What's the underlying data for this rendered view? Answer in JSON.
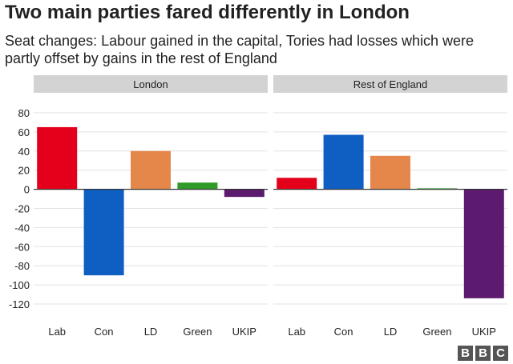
{
  "title": "Two main parties fared differently in London",
  "subtitle": "Seat changes: Labour gained in the capital, Tories had losses which were partly offset by gains in the rest of England",
  "logo": [
    "B",
    "B",
    "C"
  ],
  "chart_data": {
    "type": "bar",
    "ylim": [
      -120,
      80
    ],
    "yticks": [
      80,
      60,
      40,
      20,
      0,
      -20,
      -40,
      -60,
      -80,
      -100,
      -120
    ],
    "grid": true,
    "categories": [
      "Lab",
      "Con",
      "LD",
      "Green",
      "UKIP"
    ],
    "colors": [
      "#e4001a",
      "#0f5fc2",
      "#e5874a",
      "#2f9a28",
      "#5c1b6e"
    ],
    "panels": [
      {
        "name": "London",
        "values": [
          65,
          -90,
          40,
          7,
          -8
        ]
      },
      {
        "name": "Rest of England",
        "values": [
          12,
          57,
          35,
          1,
          -114
        ]
      }
    ]
  }
}
